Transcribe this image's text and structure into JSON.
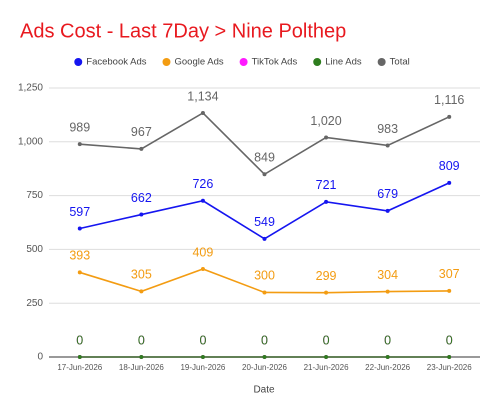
{
  "chart_data": {
    "type": "line",
    "title": "Ads Cost - Last 7Day > Nine Polthep",
    "x_label": "Date",
    "categories": [
      "17-Jun-2026",
      "18-Jun-2026",
      "19-Jun-2026",
      "20-Jun-2026",
      "21-Jun-2026",
      "22-Jun-2026",
      "23-Jun-2026"
    ],
    "series": [
      {
        "name": "Facebook Ads",
        "color": "#1515f0",
        "values": [
          597,
          662,
          726,
          549,
          721,
          679,
          809
        ]
      },
      {
        "name": "Google Ads",
        "color": "#f39c12",
        "values": [
          393,
          305,
          409,
          300,
          299,
          304,
          307
        ]
      },
      {
        "name": "TikTok Ads",
        "color": "#ff1aff",
        "values": [
          0,
          0,
          0,
          0,
          0,
          0,
          0
        ]
      },
      {
        "name": "Line Ads",
        "color": "#2e7d1e",
        "values": [
          0,
          0,
          0,
          0,
          0,
          0,
          0
        ]
      },
      {
        "name": "Total",
        "color": "#666666",
        "values": [
          989,
          967,
          1134,
          849,
          1020,
          983,
          1116
        ],
        "value_labels": [
          "989",
          "967",
          "1,134",
          "849",
          "1,020",
          "983",
          "1,116"
        ]
      }
    ],
    "ylim": [
      0,
      1250
    ],
    "yticks": [
      0,
      250,
      500,
      750,
      {
        "value": 1000,
        "label": "1,000"
      },
      {
        "value": 1250,
        "label": "1,250"
      }
    ],
    "grid": true,
    "legend": "top"
  }
}
